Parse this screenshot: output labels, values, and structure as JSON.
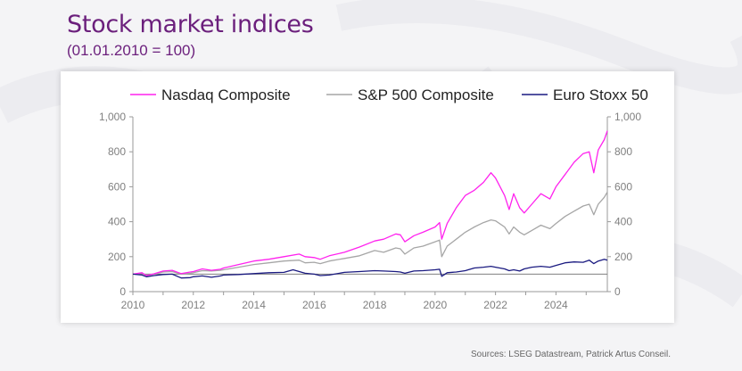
{
  "header": {
    "title": "Stock market indices",
    "subtitle": "(01.01.2010 = 100)"
  },
  "footer": {
    "source": "Sources: LSEG Datastream, Patrick Artus Conseil."
  },
  "colors": {
    "title": "#6b1f7c",
    "nasdaq": "#ff22ee",
    "sp500": "#a6a6a6",
    "eurostoxx": "#1a1a80",
    "reference": "#7f7f7f"
  },
  "chart_data": {
    "type": "line",
    "xlim": [
      2010,
      2025.7
    ],
    "ylim": [
      0,
      1000
    ],
    "x_ticks": [
      "2010",
      "2012",
      "2014",
      "2016",
      "2018",
      "2020",
      "2022",
      "2024"
    ],
    "y_ticks_left": [
      "0",
      "200",
      "400",
      "600",
      "800",
      "1,000"
    ],
    "y_ticks_right": [
      "0",
      "200",
      "400",
      "600",
      "800",
      "1,000"
    ],
    "reference_line": 100,
    "legend_position": "top",
    "grid": false,
    "series": [
      {
        "name": "Nasdaq Composite",
        "color": "#ff22ee",
        "points": [
          [
            2010,
            100
          ],
          [
            2010.3,
            108
          ],
          [
            2010.45,
            92
          ],
          [
            2010.7,
            102
          ],
          [
            2011,
            118
          ],
          [
            2011.3,
            122
          ],
          [
            2011.6,
            103
          ],
          [
            2011.9,
            112
          ],
          [
            2012,
            115
          ],
          [
            2012.3,
            130
          ],
          [
            2012.6,
            122
          ],
          [
            2012.9,
            128
          ],
          [
            2013,
            135
          ],
          [
            2013.5,
            155
          ],
          [
            2014,
            175
          ],
          [
            2014.5,
            185
          ],
          [
            2015,
            200
          ],
          [
            2015.5,
            215
          ],
          [
            2015.7,
            200
          ],
          [
            2016,
            195
          ],
          [
            2016.2,
            185
          ],
          [
            2016.5,
            205
          ],
          [
            2017,
            225
          ],
          [
            2017.5,
            255
          ],
          [
            2018,
            290
          ],
          [
            2018.3,
            300
          ],
          [
            2018.7,
            330
          ],
          [
            2018.85,
            325
          ],
          [
            2019,
            285
          ],
          [
            2019.3,
            320
          ],
          [
            2019.6,
            340
          ],
          [
            2020,
            370
          ],
          [
            2020.15,
            395
          ],
          [
            2020.22,
            300
          ],
          [
            2020.4,
            390
          ],
          [
            2020.7,
            480
          ],
          [
            2021,
            550
          ],
          [
            2021.3,
            580
          ],
          [
            2021.6,
            625
          ],
          [
            2021.85,
            680
          ],
          [
            2022,
            650
          ],
          [
            2022.3,
            550
          ],
          [
            2022.45,
            470
          ],
          [
            2022.6,
            560
          ],
          [
            2022.8,
            480
          ],
          [
            2022.95,
            450
          ],
          [
            2023.2,
            500
          ],
          [
            2023.5,
            560
          ],
          [
            2023.8,
            530
          ],
          [
            2024,
            600
          ],
          [
            2024.3,
            670
          ],
          [
            2024.6,
            740
          ],
          [
            2024.9,
            790
          ],
          [
            2025.1,
            800
          ],
          [
            2025.25,
            680
          ],
          [
            2025.4,
            810
          ],
          [
            2025.6,
            870
          ],
          [
            2025.7,
            920
          ]
        ]
      },
      {
        "name": "S&P 500 Composite",
        "color": "#a6a6a6",
        "points": [
          [
            2010,
            100
          ],
          [
            2010.3,
            105
          ],
          [
            2010.45,
            92
          ],
          [
            2010.7,
            100
          ],
          [
            2011,
            112
          ],
          [
            2011.3,
            115
          ],
          [
            2011.6,
            100
          ],
          [
            2011.9,
            105
          ],
          [
            2012,
            108
          ],
          [
            2012.3,
            120
          ],
          [
            2012.6,
            118
          ],
          [
            2012.9,
            122
          ],
          [
            2013,
            125
          ],
          [
            2013.5,
            140
          ],
          [
            2014,
            155
          ],
          [
            2014.5,
            165
          ],
          [
            2015,
            175
          ],
          [
            2015.5,
            180
          ],
          [
            2015.7,
            165
          ],
          [
            2016,
            168
          ],
          [
            2016.2,
            160
          ],
          [
            2016.5,
            175
          ],
          [
            2017,
            190
          ],
          [
            2017.5,
            205
          ],
          [
            2018,
            235
          ],
          [
            2018.3,
            225
          ],
          [
            2018.7,
            250
          ],
          [
            2018.85,
            245
          ],
          [
            2019,
            215
          ],
          [
            2019.3,
            250
          ],
          [
            2019.6,
            260
          ],
          [
            2020,
            285
          ],
          [
            2020.15,
            295
          ],
          [
            2020.22,
            200
          ],
          [
            2020.4,
            260
          ],
          [
            2020.7,
            300
          ],
          [
            2021,
            340
          ],
          [
            2021.3,
            370
          ],
          [
            2021.6,
            395
          ],
          [
            2021.85,
            410
          ],
          [
            2022,
            405
          ],
          [
            2022.3,
            370
          ],
          [
            2022.45,
            330
          ],
          [
            2022.6,
            370
          ],
          [
            2022.8,
            340
          ],
          [
            2022.95,
            325
          ],
          [
            2023.2,
            350
          ],
          [
            2023.5,
            380
          ],
          [
            2023.8,
            360
          ],
          [
            2024,
            390
          ],
          [
            2024.3,
            430
          ],
          [
            2024.6,
            460
          ],
          [
            2024.9,
            490
          ],
          [
            2025.1,
            500
          ],
          [
            2025.25,
            440
          ],
          [
            2025.4,
            500
          ],
          [
            2025.6,
            540
          ],
          [
            2025.7,
            570
          ]
        ]
      },
      {
        "name": "Euro Stoxx 50",
        "color": "#1a1a80",
        "points": [
          [
            2010,
            100
          ],
          [
            2010.3,
            95
          ],
          [
            2010.45,
            85
          ],
          [
            2010.7,
            92
          ],
          [
            2011,
            98
          ],
          [
            2011.3,
            100
          ],
          [
            2011.6,
            78
          ],
          [
            2011.9,
            80
          ],
          [
            2012,
            85
          ],
          [
            2012.3,
            90
          ],
          [
            2012.6,
            82
          ],
          [
            2012.9,
            90
          ],
          [
            2013,
            95
          ],
          [
            2013.5,
            98
          ],
          [
            2014,
            103
          ],
          [
            2014.5,
            108
          ],
          [
            2015,
            110
          ],
          [
            2015.3,
            125
          ],
          [
            2015.7,
            105
          ],
          [
            2016,
            100
          ],
          [
            2016.2,
            92
          ],
          [
            2016.5,
            95
          ],
          [
            2017,
            110
          ],
          [
            2017.5,
            115
          ],
          [
            2018,
            120
          ],
          [
            2018.3,
            118
          ],
          [
            2018.7,
            115
          ],
          [
            2018.85,
            112
          ],
          [
            2019,
            105
          ],
          [
            2019.3,
            118
          ],
          [
            2019.6,
            120
          ],
          [
            2020,
            125
          ],
          [
            2020.15,
            128
          ],
          [
            2020.22,
            88
          ],
          [
            2020.4,
            108
          ],
          [
            2020.7,
            112
          ],
          [
            2021,
            120
          ],
          [
            2021.3,
            135
          ],
          [
            2021.6,
            140
          ],
          [
            2021.85,
            145
          ],
          [
            2022,
            140
          ],
          [
            2022.3,
            130
          ],
          [
            2022.45,
            120
          ],
          [
            2022.6,
            125
          ],
          [
            2022.8,
            118
          ],
          [
            2022.95,
            130
          ],
          [
            2023.2,
            140
          ],
          [
            2023.5,
            145
          ],
          [
            2023.8,
            140
          ],
          [
            2024,
            150
          ],
          [
            2024.3,
            165
          ],
          [
            2024.6,
            170
          ],
          [
            2024.9,
            168
          ],
          [
            2025.1,
            180
          ],
          [
            2025.25,
            160
          ],
          [
            2025.4,
            175
          ],
          [
            2025.6,
            185
          ],
          [
            2025.7,
            180
          ]
        ]
      }
    ]
  }
}
